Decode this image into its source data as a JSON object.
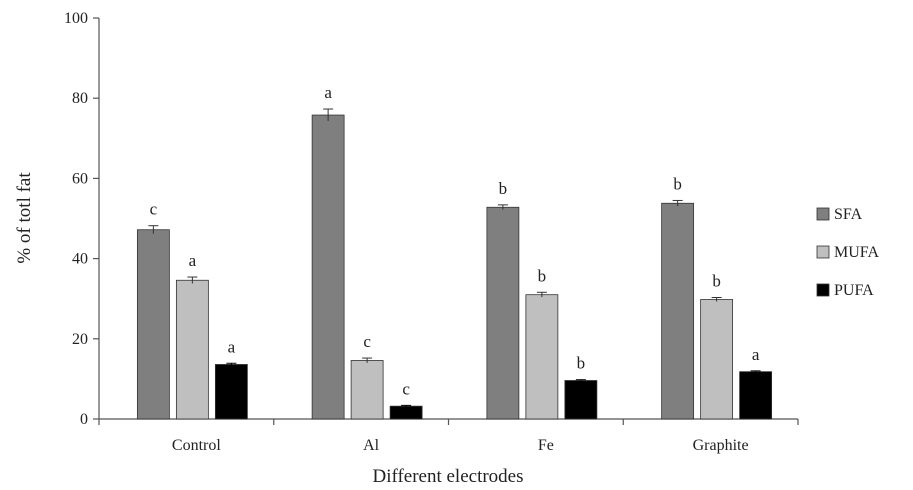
{
  "chart_data": {
    "type": "bar",
    "title": "",
    "xlabel": "Different electrodes",
    "ylabel": "% of totl fat",
    "ylim": [
      0,
      100
    ],
    "yticks": [
      "0",
      "20",
      "40",
      "60",
      "80",
      "100"
    ],
    "grid": false,
    "legend_position": "right",
    "categories": [
      "Control",
      "Al",
      "Fe",
      "Graphite"
    ],
    "series": [
      {
        "name": "SFA",
        "color": "#7f7f7f",
        "values": [
          47.2,
          75.8,
          52.8,
          53.8
        ],
        "errors": [
          1.0,
          1.5,
          0.6,
          0.7
        ],
        "letters": [
          "c",
          "a",
          "b",
          "b"
        ]
      },
      {
        "name": "MUFA",
        "color": "#bfbfbf",
        "values": [
          34.6,
          14.6,
          31.0,
          29.8
        ],
        "errors": [
          0.8,
          0.6,
          0.6,
          0.5
        ],
        "letters": [
          "a",
          "c",
          "b",
          "b"
        ]
      },
      {
        "name": "PUFA",
        "color": "#000000",
        "values": [
          13.6,
          3.2,
          9.6,
          11.8
        ],
        "errors": [
          0.3,
          0.2,
          0.2,
          0.2
        ],
        "letters": [
          "a",
          "c",
          "b",
          "a"
        ]
      }
    ]
  }
}
